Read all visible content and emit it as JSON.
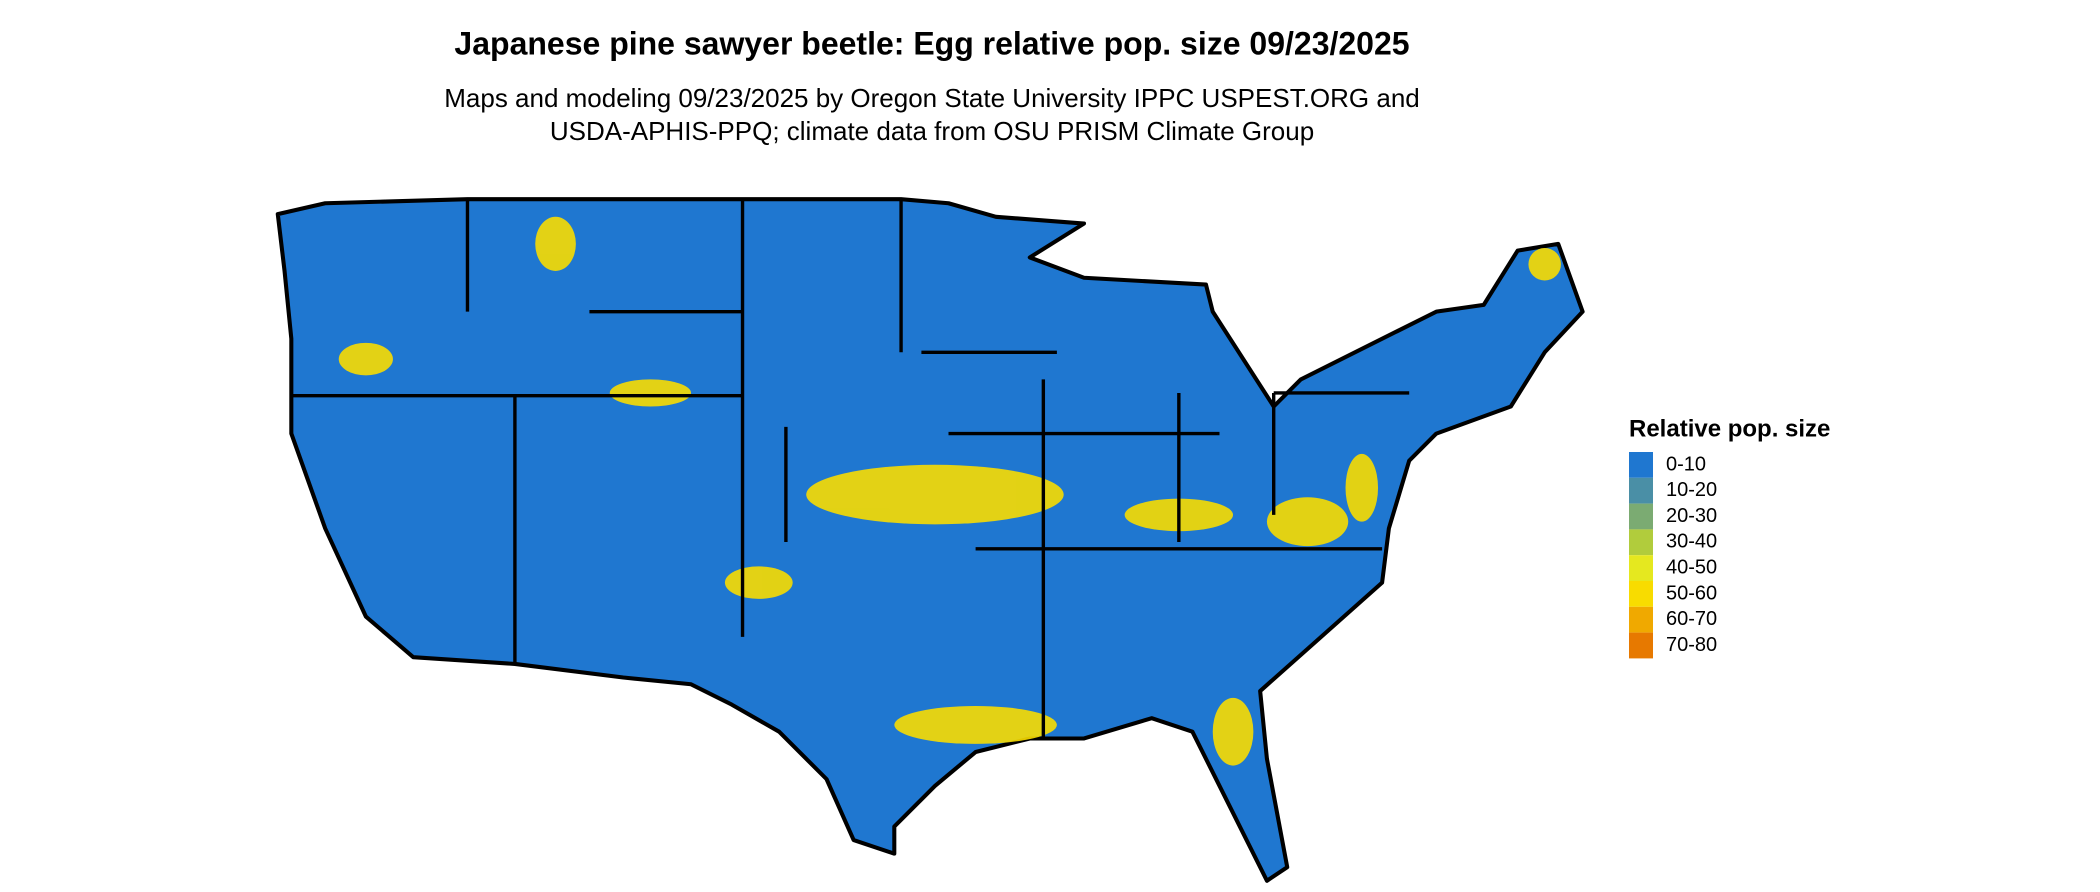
{
  "title": "Japanese pine sawyer beetle: Egg relative pop. size 09/23/2025",
  "subtitle": [
    "Maps and modeling 09/23/2025 by Oregon State University IPPC USPEST.ORG and",
    "USDA-APHIS-PPQ; climate data from OSU PRISM Climate Group"
  ],
  "legend": {
    "title": "Relative pop. size",
    "items": [
      {
        "label": "0-10",
        "color": "#1f77d0"
      },
      {
        "label": "10-20",
        "color": "#4a8fa6"
      },
      {
        "label": "20-30",
        "color": "#7bab72"
      },
      {
        "label": "30-40",
        "color": "#b1cc3c"
      },
      {
        "label": "40-50",
        "color": "#e5e81f"
      },
      {
        "label": "50-60",
        "color": "#f8dc00"
      },
      {
        "label": "60-70",
        "color": "#f0a900"
      },
      {
        "label": "70-80",
        "color": "#e77900"
      }
    ]
  }
}
